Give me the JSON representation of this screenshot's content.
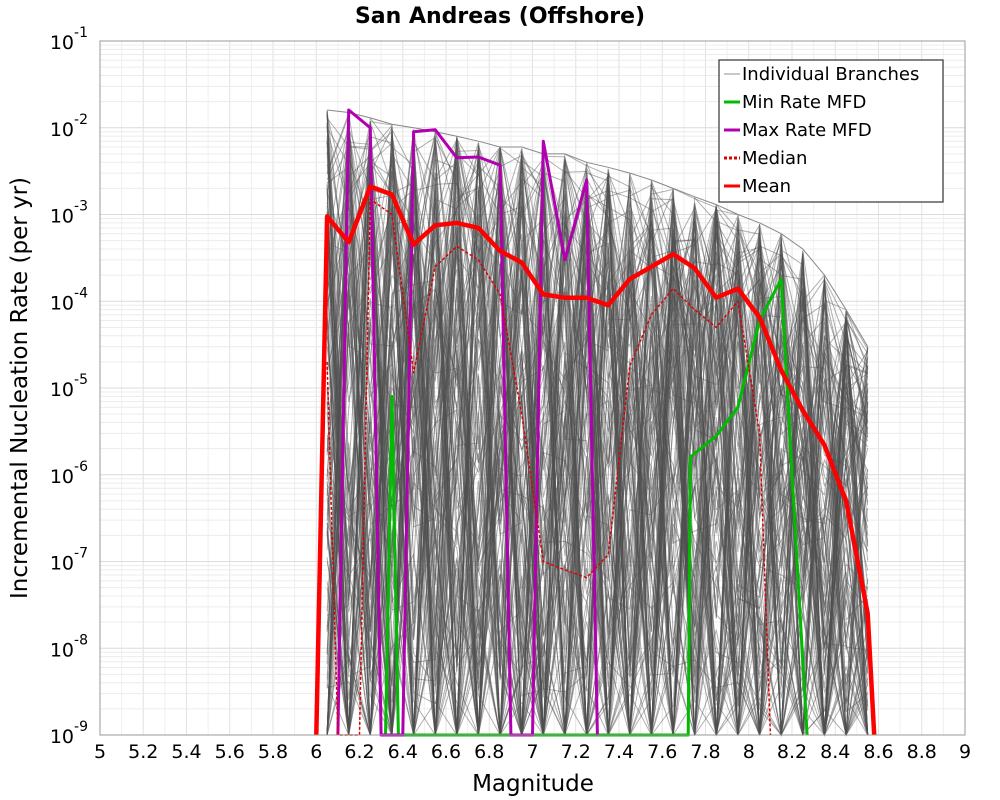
{
  "chart_data": {
    "type": "line",
    "title": "San Andreas (Offshore)",
    "xlabel": "Magnitude",
    "ylabel": "Incremental Nucleation Rate (per yr)",
    "xlim": [
      5,
      9
    ],
    "ylim_exp": [
      -9,
      -1
    ],
    "y_scale": "log",
    "grid": true,
    "legend_position": "top-right",
    "xticks": [
      "5",
      "5.2",
      "5.4",
      "5.6",
      "5.8",
      "6",
      "6.2",
      "6.4",
      "6.6",
      "6.8",
      "7",
      "7.2",
      "7.4",
      "7.6",
      "7.8",
      "8",
      "8.2",
      "8.4",
      "8.6",
      "8.8",
      "9"
    ],
    "yticks": [
      {
        "base": "10",
        "exp": "-9",
        "value": 1e-09
      },
      {
        "base": "10",
        "exp": "-8",
        "value": 1e-08
      },
      {
        "base": "10",
        "exp": "-7",
        "value": 1e-07
      },
      {
        "base": "10",
        "exp": "-6",
        "value": 1e-06
      },
      {
        "base": "10",
        "exp": "-5",
        "value": 1e-05
      },
      {
        "base": "10",
        "exp": "-4",
        "value": 0.0001
      },
      {
        "base": "10",
        "exp": "-3",
        "value": 0.001
      },
      {
        "base": "10",
        "exp": "-2",
        "value": 0.01
      },
      {
        "base": "10",
        "exp": "-1",
        "value": 0.1
      }
    ],
    "band": {
      "name": "Individual Branches",
      "color": "#505050",
      "x": [
        6.05,
        6.15,
        6.25,
        6.35,
        6.45,
        6.55,
        6.65,
        6.75,
        6.85,
        6.95,
        7.05,
        7.15,
        7.25,
        7.35,
        7.45,
        7.55,
        7.65,
        7.75,
        7.85,
        7.95,
        8.05,
        8.15,
        8.25,
        8.35,
        8.45,
        8.55
      ],
      "upper": [
        0.016,
        0.015,
        0.013,
        0.011,
        0.01,
        0.009,
        0.008,
        0.007,
        0.006,
        0.006,
        0.005,
        0.005,
        0.004,
        0.0035,
        0.003,
        0.0025,
        0.002,
        0.0016,
        0.0013,
        0.001,
        0.0008,
        0.0006,
        0.0004,
        0.0002,
        8e-05,
        3e-05
      ]
    },
    "series": [
      {
        "name": "Min Rate MFD",
        "color": "#00bb00",
        "width": 3,
        "dash": "",
        "x": [
          6.32,
          6.35,
          6.38,
          7.72,
          7.73,
          7.85,
          7.95,
          8.05,
          8.15,
          8.2,
          8.27
        ],
        "y": [
          1e-09,
          8e-06,
          1e-09,
          1e-09,
          1.6e-06,
          2.8e-06,
          6e-06,
          6e-05,
          0.00018,
          1e-06,
          1e-09
        ]
      },
      {
        "name": "Max Rate MFD",
        "color": "#b000b0",
        "width": 3,
        "dash": "",
        "x": [
          6.1,
          6.15,
          6.25,
          6.3,
          6.35,
          6.4,
          6.45,
          6.55,
          6.65,
          6.75,
          6.85,
          6.9,
          7.0,
          7.05,
          7.15,
          7.25,
          7.3
        ],
        "y": [
          1e-09,
          0.016,
          0.01,
          1e-09,
          1e-09,
          1e-09,
          0.009,
          0.0095,
          0.0045,
          0.0046,
          0.0037,
          1e-09,
          1e-09,
          0.007,
          0.0003,
          0.0025,
          1e-09
        ]
      },
      {
        "name": "Median",
        "color": "#dd0000",
        "width": 1.5,
        "dash": "3,2",
        "x": [
          6.05,
          6.1,
          6.2,
          6.25,
          6.35,
          6.45,
          6.55,
          6.65,
          6.75,
          6.85,
          6.95,
          7.05,
          7.15,
          7.25,
          7.35,
          7.45,
          7.55,
          7.65,
          7.75,
          7.85,
          7.95,
          8.05,
          8.1
        ],
        "y": [
          2e-05,
          1e-09,
          1e-09,
          0.0015,
          0.001,
          1.5e-05,
          0.00025,
          0.00043,
          0.0003,
          0.00012,
          5e-06,
          1e-07,
          8e-08,
          6.5e-08,
          1.2e-07,
          1.8e-05,
          7e-05,
          0.00014,
          8e-05,
          5e-05,
          0.0001,
          3e-06,
          1e-09
        ]
      },
      {
        "name": "Mean",
        "color": "#ff0000",
        "width": 4.5,
        "dash": "",
        "x": [
          6.0,
          6.05,
          6.15,
          6.25,
          6.35,
          6.45,
          6.55,
          6.65,
          6.75,
          6.85,
          6.95,
          7.05,
          7.15,
          7.25,
          7.35,
          7.45,
          7.55,
          7.65,
          7.75,
          7.85,
          7.95,
          8.05,
          8.15,
          8.25,
          8.35,
          8.45,
          8.55,
          8.58
        ],
        "y": [
          1e-09,
          0.00095,
          0.00048,
          0.0021,
          0.0017,
          0.00045,
          0.00075,
          0.0008,
          0.0007,
          0.00038,
          0.00028,
          0.00012,
          0.00011,
          0.00011,
          9e-05,
          0.00018,
          0.00025,
          0.00035,
          0.00024,
          0.00011,
          0.00014,
          6.5e-05,
          1.6e-05,
          5.5e-06,
          2.2e-06,
          5e-07,
          2.5e-08,
          1e-09
        ]
      }
    ],
    "legend": [
      {
        "label": "Individual Branches",
        "color": "#b4b4b4",
        "dash": ""
      },
      {
        "label": "Min Rate MFD",
        "color": "#00bb00",
        "dash": ""
      },
      {
        "label": "Max Rate MFD",
        "color": "#b000b0",
        "dash": ""
      },
      {
        "label": "Median",
        "color": "#dd0000",
        "dash": "3,2"
      },
      {
        "label": "Mean",
        "color": "#ff0000",
        "dash": ""
      }
    ]
  }
}
